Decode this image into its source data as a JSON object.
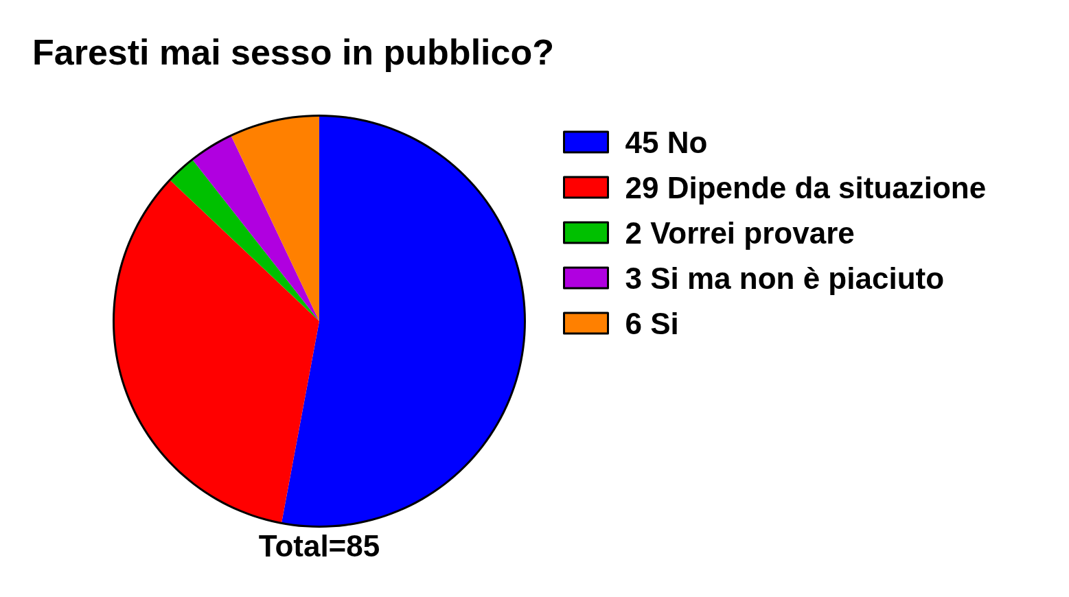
{
  "chart_data": {
    "type": "pie",
    "title": "Faresti mai sesso in pubblico?",
    "categories": [
      "45 No",
      "29 Dipende da situazione",
      "2 Vorrei provare",
      "3 Si ma non è piaciuto",
      "6 Si"
    ],
    "values": [
      45,
      29,
      2,
      3,
      6
    ],
    "colors": [
      "#0000ff",
      "#ff0000",
      "#00c000",
      "#b000e0",
      "#ff8000"
    ],
    "legend": "right",
    "annotations": [
      "Total=85"
    ]
  }
}
